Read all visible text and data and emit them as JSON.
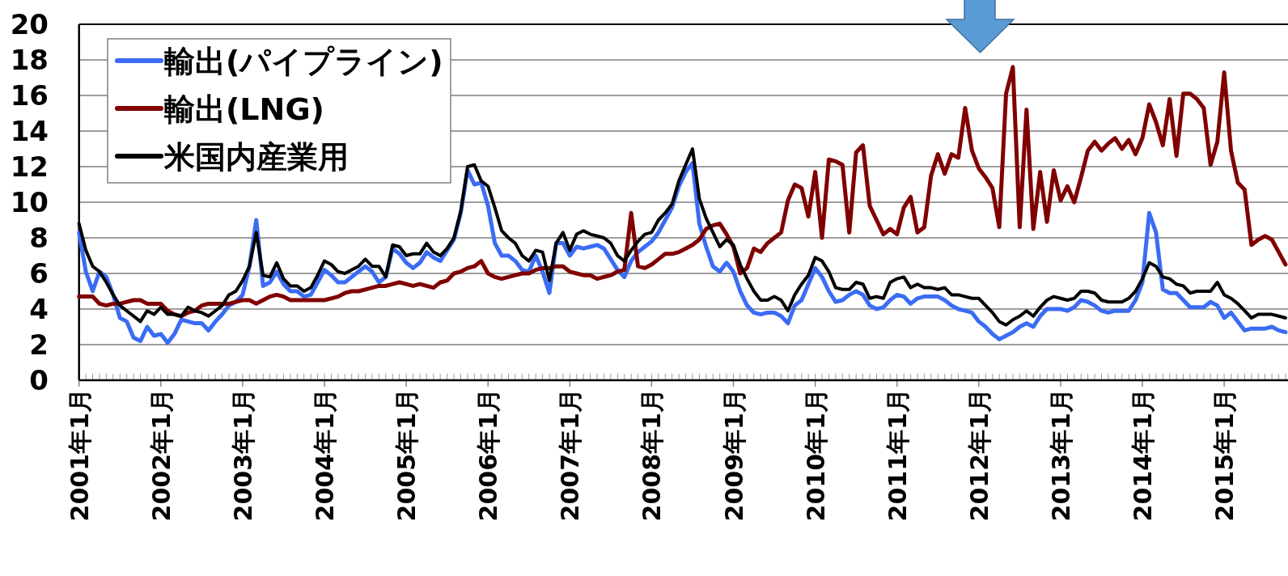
{
  "chart_data": {
    "type": "line",
    "x": [
      "2001-01",
      "2001-02",
      "2001-03",
      "2001-04",
      "2001-05",
      "2001-06",
      "2001-07",
      "2001-08",
      "2001-09",
      "2001-10",
      "2001-11",
      "2001-12",
      "2002-01",
      "2002-02",
      "2002-03",
      "2002-04",
      "2002-05",
      "2002-06",
      "2002-07",
      "2002-08",
      "2002-09",
      "2002-10",
      "2002-11",
      "2002-12",
      "2003-01",
      "2003-02",
      "2003-03",
      "2003-04",
      "2003-05",
      "2003-06",
      "2003-07",
      "2003-08",
      "2003-09",
      "2003-10",
      "2003-11",
      "2003-12",
      "2004-01",
      "2004-02",
      "2004-03",
      "2004-04",
      "2004-05",
      "2004-06",
      "2004-07",
      "2004-08",
      "2004-09",
      "2004-10",
      "2004-11",
      "2004-12",
      "2005-01",
      "2005-02",
      "2005-03",
      "2005-04",
      "2005-05",
      "2005-06",
      "2005-07",
      "2005-08",
      "2005-09",
      "2005-10",
      "2005-11",
      "2005-12",
      "2006-01",
      "2006-02",
      "2006-03",
      "2006-04",
      "2006-05",
      "2006-06",
      "2006-07",
      "2006-08",
      "2006-09",
      "2006-10",
      "2006-11",
      "2006-12",
      "2007-01",
      "2007-02",
      "2007-03",
      "2007-04",
      "2007-05",
      "2007-06",
      "2007-07",
      "2007-08",
      "2007-09",
      "2007-10",
      "2007-11",
      "2007-12",
      "2008-01",
      "2008-02",
      "2008-03",
      "2008-04",
      "2008-05",
      "2008-06",
      "2008-07",
      "2008-08",
      "2008-09",
      "2008-10",
      "2008-11",
      "2008-12",
      "2009-01",
      "2009-02",
      "2009-03",
      "2009-04",
      "2009-05",
      "2009-06",
      "2009-07",
      "2009-08",
      "2009-09",
      "2009-10",
      "2009-11",
      "2009-12",
      "2010-01",
      "2010-02",
      "2010-03",
      "2010-04",
      "2010-05",
      "2010-06",
      "2010-07",
      "2010-08",
      "2010-09",
      "2010-10",
      "2010-11",
      "2010-12",
      "2011-01",
      "2011-02",
      "2011-03",
      "2011-04",
      "2011-05",
      "2011-06",
      "2011-07",
      "2011-08",
      "2011-09",
      "2011-10",
      "2011-11",
      "2011-12",
      "2012-01",
      "2012-02",
      "2012-03",
      "2012-04",
      "2012-05",
      "2012-06",
      "2012-07",
      "2012-08",
      "2012-09",
      "2012-10",
      "2012-11",
      "2012-12",
      "2013-01",
      "2013-02",
      "2013-03",
      "2013-04",
      "2013-05",
      "2013-06",
      "2013-07",
      "2013-08",
      "2013-09",
      "2013-10",
      "2013-11",
      "2013-12",
      "2014-01",
      "2014-02",
      "2014-03",
      "2014-04",
      "2014-05",
      "2014-06",
      "2014-07",
      "2014-08",
      "2014-09",
      "2014-10",
      "2014-11",
      "2014-12",
      "2015-01",
      "2015-02",
      "2015-03",
      "2015-04",
      "2015-05",
      "2015-06",
      "2015-07",
      "2015-08",
      "2015-09",
      "2015-10"
    ],
    "series": [
      {
        "name": "輸出(パイプライン)",
        "color": "#3a6cf4",
        "values": [
          8.3,
          6.1,
          5.0,
          6.1,
          5.8,
          4.8,
          3.5,
          3.3,
          2.4,
          2.2,
          3.0,
          2.5,
          2.6,
          2.1,
          2.6,
          3.4,
          3.3,
          3.2,
          3.2,
          2.8,
          3.3,
          3.7,
          4.2,
          4.4,
          4.8,
          6.4,
          9.0,
          5.3,
          5.5,
          6.1,
          5.4,
          5.0,
          5.0,
          4.7,
          4.8,
          5.5,
          6.2,
          5.9,
          5.5,
          5.5,
          5.8,
          6.1,
          6.4,
          6.1,
          5.5,
          5.8,
          7.4,
          7.1,
          6.6,
          6.3,
          6.6,
          7.2,
          6.9,
          6.7,
          7.3,
          7.9,
          9.4,
          11.8,
          11.0,
          11.1,
          9.8,
          7.7,
          7.0,
          7.0,
          6.7,
          6.2,
          6.1,
          7.0,
          6.1,
          4.9,
          7.7,
          7.7,
          7.0,
          7.5,
          7.4,
          7.5,
          7.6,
          7.4,
          6.8,
          6.2,
          5.8,
          6.7,
          7.2,
          7.5,
          7.8,
          8.3,
          9.0,
          9.7,
          10.9,
          11.7,
          12.2,
          8.8,
          7.5,
          6.4,
          6.1,
          6.6,
          6.1,
          5.0,
          4.2,
          3.8,
          3.7,
          3.8,
          3.8,
          3.6,
          3.2,
          4.2,
          4.5,
          5.4,
          6.3,
          5.8,
          5.0,
          4.4,
          4.5,
          4.8,
          5.0,
          4.8,
          4.2,
          4.0,
          4.1,
          4.5,
          4.8,
          4.7,
          4.3,
          4.6,
          4.7,
          4.7,
          4.7,
          4.5,
          4.2,
          4.0,
          3.9,
          3.8,
          3.3,
          3.0,
          2.6,
          2.3,
          2.5,
          2.7,
          3.0,
          3.2,
          3.0,
          3.6,
          4.0,
          4.0,
          4.0,
          3.9,
          4.1,
          4.5,
          4.4,
          4.2,
          3.9,
          3.8,
          3.9,
          3.9,
          3.9,
          4.5,
          5.5,
          9.4,
          8.3,
          5.1,
          4.9,
          4.9,
          4.5,
          4.1,
          4.1,
          4.1,
          4.4,
          4.2,
          3.5,
          3.8,
          3.3,
          2.8,
          2.9,
          2.9,
          2.9,
          3.0,
          2.8,
          2.7
        ]
      },
      {
        "name": "輸出(LNG)",
        "color": "#800000",
        "values": [
          4.7,
          4.7,
          4.7,
          4.3,
          4.2,
          4.3,
          4.3,
          4.4,
          4.5,
          4.5,
          4.3,
          4.3,
          4.3,
          3.9,
          3.7,
          3.6,
          3.8,
          3.9,
          4.2,
          4.3,
          4.3,
          4.3,
          4.3,
          4.4,
          4.5,
          4.5,
          4.3,
          4.5,
          4.7,
          4.8,
          4.7,
          4.5,
          4.5,
          4.5,
          4.5,
          4.5,
          4.5,
          4.6,
          4.7,
          4.9,
          5.0,
          5.0,
          5.1,
          5.2,
          5.3,
          5.3,
          5.4,
          5.5,
          5.4,
          5.3,
          5.4,
          5.3,
          5.2,
          5.5,
          5.6,
          6.0,
          6.1,
          6.3,
          6.4,
          6.7,
          6.0,
          5.8,
          5.7,
          5.8,
          5.9,
          6.0,
          6.0,
          6.2,
          6.3,
          6.3,
          6.4,
          6.4,
          6.1,
          6.0,
          5.9,
          5.9,
          5.7,
          5.8,
          5.9,
          6.1,
          6.2,
          9.4,
          6.4,
          6.3,
          6.5,
          6.8,
          7.1,
          7.1,
          7.2,
          7.4,
          7.6,
          7.9,
          8.5,
          8.7,
          8.8,
          8.2,
          7.5,
          6.0,
          6.3,
          7.4,
          7.2,
          7.7,
          8.0,
          8.3,
          10.1,
          11.0,
          10.8,
          9.2,
          11.7,
          8.0,
          12.4,
          12.3,
          12.1,
          8.3,
          12.8,
          13.2,
          9.8,
          9.0,
          8.2,
          8.5,
          8.2,
          9.7,
          10.3,
          8.3,
          8.6,
          11.5,
          12.7,
          11.6,
          12.7,
          12.5,
          15.3,
          12.9,
          11.9,
          11.4,
          10.8,
          8.6,
          16.1,
          17.6,
          8.6,
          15.2,
          8.5,
          11.7,
          8.9,
          11.8,
          10.1,
          10.9,
          10.0,
          11.4,
          12.9,
          13.4,
          12.9,
          13.3,
          13.6,
          13.0,
          13.5,
          12.7,
          13.6,
          15.5,
          14.5,
          13.2,
          15.8,
          12.6,
          16.1,
          16.1,
          15.8,
          15.3,
          12.1,
          13.4,
          17.3,
          12.9,
          11.1,
          10.7,
          7.6,
          7.9,
          8.1,
          7.9,
          7.2,
          6.5
        ]
      },
      {
        "name": "米国内産業用",
        "color": "#000000",
        "values": [
          8.8,
          7.3,
          6.4,
          6.1,
          5.5,
          4.8,
          4.2,
          3.9,
          3.6,
          3.3,
          3.9,
          3.7,
          4.1,
          3.7,
          3.7,
          3.6,
          4.1,
          3.9,
          3.8,
          3.6,
          3.9,
          4.2,
          4.8,
          5.0,
          5.6,
          6.4,
          8.3,
          5.9,
          5.8,
          6.6,
          5.7,
          5.3,
          5.3,
          5.0,
          5.2,
          5.9,
          6.7,
          6.5,
          6.1,
          6.0,
          6.2,
          6.4,
          6.8,
          6.4,
          6.4,
          5.8,
          7.6,
          7.5,
          7.0,
          7.1,
          7.1,
          7.7,
          7.2,
          7.0,
          7.4,
          8.0,
          9.5,
          12.0,
          12.1,
          11.2,
          10.9,
          9.7,
          8.4,
          8.0,
          7.7,
          7.0,
          6.7,
          7.3,
          7.2,
          5.6,
          7.7,
          8.3,
          7.3,
          8.2,
          8.4,
          8.2,
          8.1,
          8.0,
          7.7,
          7.0,
          6.7,
          7.3,
          7.8,
          8.2,
          8.3,
          9.0,
          9.4,
          9.9,
          11.2,
          12.1,
          13.0,
          10.2,
          9.1,
          8.3,
          7.5,
          7.9,
          7.6,
          6.5,
          5.7,
          5.0,
          4.5,
          4.5,
          4.7,
          4.5,
          3.9,
          4.8,
          5.4,
          5.9,
          6.9,
          6.7,
          6.1,
          5.2,
          5.1,
          5.1,
          5.5,
          5.4,
          4.6,
          4.7,
          4.6,
          5.5,
          5.7,
          5.8,
          5.2,
          5.4,
          5.2,
          5.2,
          5.1,
          5.2,
          4.8,
          4.8,
          4.7,
          4.6,
          4.6,
          4.2,
          3.8,
          3.3,
          3.1,
          3.4,
          3.6,
          3.9,
          3.6,
          4.1,
          4.5,
          4.7,
          4.6,
          4.5,
          4.6,
          5.0,
          5.0,
          4.9,
          4.5,
          4.4,
          4.4,
          4.4,
          4.6,
          5.0,
          5.7,
          6.6,
          6.4,
          5.8,
          5.7,
          5.4,
          5.3,
          4.9,
          5.0,
          5.0,
          5.0,
          5.5,
          4.8,
          4.6,
          4.3,
          3.9,
          3.5,
          3.7,
          3.7,
          3.7,
          3.6,
          3.5
        ]
      }
    ],
    "xlim": [
      "2001-01",
      "2015-10-12"
    ],
    "xticks": [
      {
        "value": "2001-01",
        "label": "2001年1月"
      },
      {
        "value": "2002-01",
        "label": "2002年1月"
      },
      {
        "value": "2003-01",
        "label": "2003年1月"
      },
      {
        "value": "2004-01",
        "label": "2004年1月"
      },
      {
        "value": "2005-01",
        "label": "2005年1月"
      },
      {
        "value": "2006-01",
        "label": "2006年1月"
      },
      {
        "value": "2007-01",
        "label": "2007年1月"
      },
      {
        "value": "2008-01",
        "label": "2008年1月"
      },
      {
        "value": "2009-01",
        "label": "2009年1月"
      },
      {
        "value": "2010-01",
        "label": "2010年1月"
      },
      {
        "value": "2011-01",
        "label": "2011年1月"
      },
      {
        "value": "2012-01",
        "label": "2012年1月"
      },
      {
        "value": "2013-01",
        "label": "2013年1月"
      },
      {
        "value": "2014-01",
        "label": "2014年1月"
      },
      {
        "value": "2015-01",
        "label": "2015年1月"
      }
    ],
    "ylim": [
      0,
      20
    ],
    "yticks": [
      0,
      2,
      4,
      6,
      8,
      10,
      12,
      14,
      16,
      18,
      20
    ],
    "grid": "y",
    "legend": "top left",
    "line_style": "solid"
  }
}
